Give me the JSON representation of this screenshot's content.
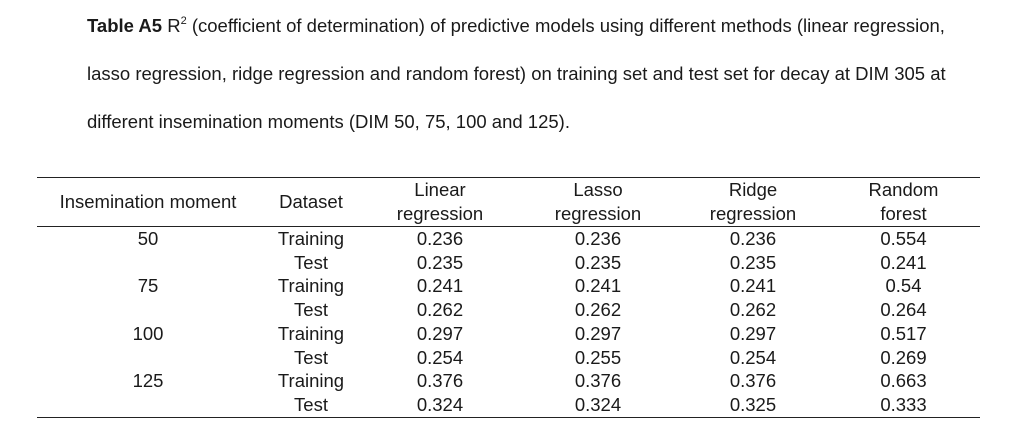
{
  "caption": {
    "label": "Table A5",
    "r_symbol": "R",
    "r_superscript": "2",
    "text": " (coefficient of determination) of predictive models using different methods (linear regression, lasso regression, ridge regression and random forest) on training set and test set for decay at DIM 305 at different insemination moments (DIM 50, 75, 100 and 125)."
  },
  "table": {
    "headers": [
      {
        "line1": "Insemination moment",
        "line2": ""
      },
      {
        "line1": "Dataset",
        "line2": ""
      },
      {
        "line1": "Linear",
        "line2": "regression"
      },
      {
        "line1": "Lasso",
        "line2": "regression"
      },
      {
        "line1": "Ridge",
        "line2": "regression"
      },
      {
        "line1": "Random",
        "line2": "forest"
      }
    ],
    "rows": [
      {
        "moment": "50",
        "dataset": "Training",
        "linear": "0.236",
        "lasso": "0.236",
        "ridge": "0.236",
        "rf": "0.554"
      },
      {
        "moment": "",
        "dataset": "Test",
        "linear": "0.235",
        "lasso": "0.235",
        "ridge": "0.235",
        "rf": "0.241"
      },
      {
        "moment": "75",
        "dataset": "Training",
        "linear": "0.241",
        "lasso": "0.241",
        "ridge": "0.241",
        "rf": "0.54"
      },
      {
        "moment": "",
        "dataset": "Test",
        "linear": "0.262",
        "lasso": "0.262",
        "ridge": "0.262",
        "rf": "0.264"
      },
      {
        "moment": "100",
        "dataset": "Training",
        "linear": "0.297",
        "lasso": "0.297",
        "ridge": "0.297",
        "rf": "0.517"
      },
      {
        "moment": "",
        "dataset": "Test",
        "linear": "0.254",
        "lasso": "0.255",
        "ridge": "0.254",
        "rf": "0.269"
      },
      {
        "moment": "125",
        "dataset": "Training",
        "linear": "0.376",
        "lasso": "0.376",
        "ridge": "0.376",
        "rf": "0.663"
      },
      {
        "moment": "",
        "dataset": "Test",
        "linear": "0.324",
        "lasso": "0.324",
        "ridge": "0.325",
        "rf": "0.333"
      }
    ]
  }
}
